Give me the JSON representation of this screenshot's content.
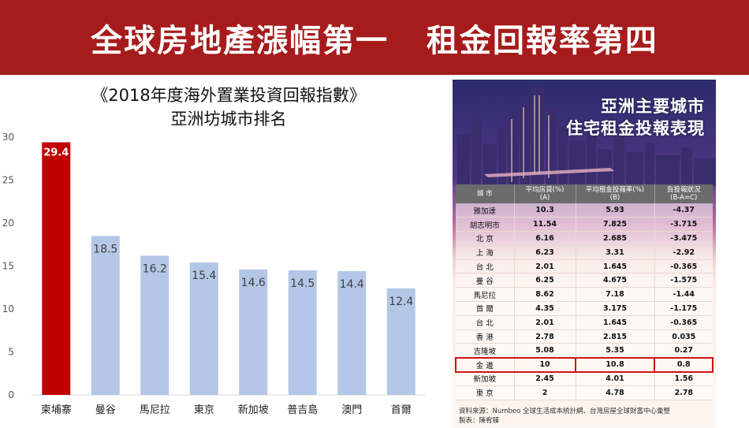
{
  "banner": {
    "title": "全球房地產漲幅第一   租金回報率第四"
  },
  "colors": {
    "banner": "#a61c1c",
    "highlight_bar": "#c00000",
    "bar": "#b4c7e7",
    "highlight_box": "#cc1414"
  },
  "chart_data": {
    "type": "bar",
    "title_line1": "《2018年度海外置業投資回報指數》",
    "title_line2": "亞洲坊城市排名",
    "categories": [
      "柬埔寨",
      "曼谷",
      "馬尼拉",
      "東京",
      "新加坡",
      "普吉島",
      "澳門",
      "首爾"
    ],
    "values": [
      29.4,
      18.5,
      16.2,
      15.4,
      14.6,
      14.5,
      14.4,
      12.4
    ],
    "value_labels": [
      "29.4",
      "18.5",
      "16.2",
      "15.4",
      "14.6",
      "14.5",
      "14.4",
      "12.4"
    ],
    "highlight_index": 0,
    "ylim": [
      0,
      30
    ],
    "yticks": [
      "0",
      "5",
      "10",
      "15",
      "20",
      "25",
      "30"
    ],
    "grid": false,
    "legend": "none"
  },
  "rent_panel": {
    "title_line1": "亞洲主要城市",
    "title_line2": "住宅租金投報表現",
    "headers": [
      {
        "line1": "城 市",
        "line2": ""
      },
      {
        "line1": "平均房貸(%)",
        "line2": "(A)"
      },
      {
        "line1": "平均租金投報率(%)",
        "line2": "(B)"
      },
      {
        "line1": "負投報狀況",
        "line2": "(B-A=C)"
      }
    ],
    "rows": [
      {
        "city": "雅加達",
        "a": "10.3",
        "b": "5.93",
        "c": "-4.37"
      },
      {
        "city": "胡志明市",
        "a": "11.54",
        "b": "7.825",
        "c": "-3.715"
      },
      {
        "city": "北 京",
        "a": "6.16",
        "b": "2.685",
        "c": "-3.475"
      },
      {
        "city": "上 海",
        "a": "6.23",
        "b": "3.31",
        "c": "-2.92"
      },
      {
        "city": "台 北",
        "a": "2.01",
        "b": "1.645",
        "c": "-0.365"
      },
      {
        "city": "曼 谷",
        "a": "6.25",
        "b": "4.675",
        "c": "-1.575"
      },
      {
        "city": "馬尼拉",
        "a": "8.62",
        "b": "7.18",
        "c": "-1.44"
      },
      {
        "city": "首 爾",
        "a": "4.35",
        "b": "3.175",
        "c": "-1.175"
      },
      {
        "city": "台 北",
        "a": "2.01",
        "b": "1.645",
        "c": "-0.365"
      },
      {
        "city": "香 港",
        "a": "2.78",
        "b": "2.815",
        "c": "0.035"
      },
      {
        "city": "吉隆坡",
        "a": "5.08",
        "b": "5.35",
        "c": "0.27"
      },
      {
        "city": "金 邊",
        "a": "10",
        "b": "10.8",
        "c": "0.8"
      },
      {
        "city": "新加坡",
        "a": "2.45",
        "b": "4.01",
        "c": "1.56"
      },
      {
        "city": "東 京",
        "a": "2",
        "b": "4.78",
        "c": "2.78"
      }
    ],
    "highlight_row": 11,
    "source_line1": "資料來源：Numbeo 全球生活成本統計網、台灣房屋全球財富中心彙整",
    "source_line2": "製表：陳宥臻"
  }
}
